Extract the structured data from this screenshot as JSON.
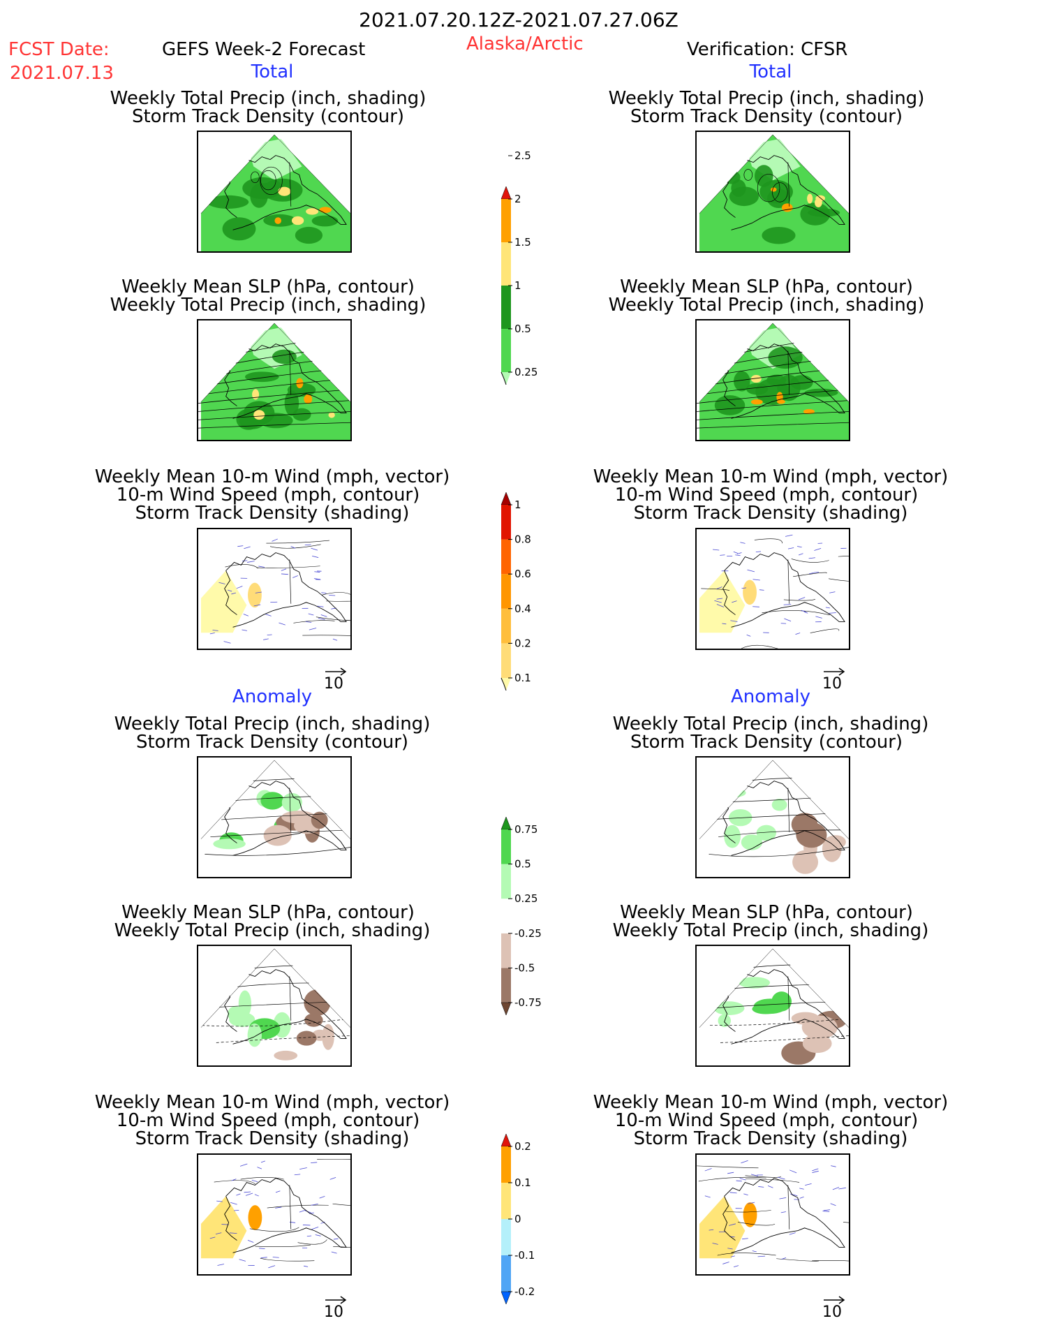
{
  "header": {
    "date_range": "2021.07.20.12Z-2021.07.27.06Z",
    "fcst_label": "FCST Date:",
    "fcst_date": "2021.07.13",
    "left_title": "GEFS Week-2 Forecast",
    "region": "Alaska/Arctic",
    "right_title": "Verification: CFSR"
  },
  "sections": {
    "total": "Total",
    "anomaly": "Anomaly"
  },
  "panels": {
    "precip_track": [
      "Weekly Total Precip (inch, shading)",
      "Storm Track Density (contour)"
    ],
    "slp_precip": [
      "Weekly Mean SLP (hPa, contour)",
      "Weekly Total Precip (inch, shading)"
    ],
    "wind_track": [
      "Weekly Mean 10-m Wind (mph, vector)",
      "10-m Wind Speed (mph, contour)",
      "Storm Track Density (shading)"
    ]
  },
  "vector_ref": "10",
  "colors": {
    "title_red": "#ff3333",
    "section_blue": "#2030ff",
    "precip": [
      "#b4fab4",
      "#50d750",
      "#1e961e",
      "#ffe578",
      "#ffa000",
      "#e1140a"
    ],
    "track": [
      "#fffaaa",
      "#ffdc78",
      "#ffbe3c",
      "#ff9600",
      "#ff6400",
      "#e11400",
      "#a50000"
    ],
    "precip_anom": [
      "#6e4632",
      "#9b7867",
      "#ddc2b5",
      "#ffffff",
      "#b4fab4",
      "#50d750",
      "#1e961e"
    ],
    "track_anom": [
      "#0064ff",
      "#50a5f5",
      "#b4f0fa",
      "#ffe578",
      "#ffa000",
      "#e1140a"
    ]
  },
  "chart_data": [
    {
      "type": "heatmap",
      "name": "Total precipitation colorbar",
      "ticks": [
        "0.25",
        "0.5",
        "1",
        "1.5",
        "2",
        "2.5"
      ]
    },
    {
      "type": "heatmap",
      "name": "Total storm track density colorbar",
      "ticks": [
        "0.1",
        "0.2",
        "0.4",
        "0.6",
        "0.8",
        "1"
      ]
    },
    {
      "type": "heatmap",
      "name": "Precipitation anomaly colorbar",
      "ticks": [
        "-0.75",
        "-0.5",
        "-0.25",
        "0.25",
        "0.5",
        "0.75"
      ]
    },
    {
      "type": "heatmap",
      "name": "Storm track density anomaly colorbar",
      "ticks": [
        "-0.2",
        "-0.1",
        "0",
        "0.1",
        "0.2"
      ]
    }
  ]
}
